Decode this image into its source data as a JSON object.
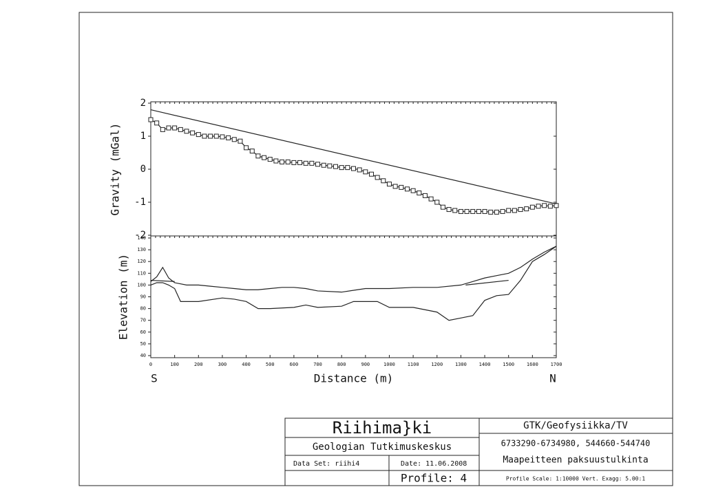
{
  "chart_data": [
    {
      "type": "line",
      "ylabel": "Gravity (mGal)",
      "xlim": [
        0,
        1700
      ],
      "ylim": [
        -2,
        2
      ],
      "yticks": [
        -2,
        -1,
        0,
        1,
        2
      ],
      "series": [
        {
          "marker": "square",
          "color": "#222222",
          "x": [
            0,
            25,
            50,
            75,
            100,
            125,
            150,
            175,
            200,
            225,
            250,
            275,
            300,
            325,
            350,
            375,
            400,
            425,
            450,
            475,
            500,
            525,
            550,
            575,
            600,
            625,
            650,
            675,
            700,
            725,
            750,
            775,
            800,
            825,
            850,
            875,
            900,
            925,
            950,
            975,
            1000,
            1025,
            1050,
            1075,
            1100,
            1125,
            1150,
            1175,
            1200,
            1225,
            1250,
            1275,
            1300,
            1325,
            1350,
            1375,
            1400,
            1425,
            1450,
            1475,
            1500,
            1525,
            1550,
            1575,
            1600,
            1625,
            1650,
            1675,
            1700
          ],
          "values": [
            1.5,
            1.4,
            1.2,
            1.25,
            1.25,
            1.2,
            1.15,
            1.1,
            1.05,
            1.0,
            1.0,
            1.0,
            0.98,
            0.95,
            0.9,
            0.85,
            0.65,
            0.55,
            0.4,
            0.35,
            0.3,
            0.25,
            0.22,
            0.22,
            0.2,
            0.2,
            0.18,
            0.18,
            0.15,
            0.12,
            0.1,
            0.08,
            0.05,
            0.05,
            0.02,
            -0.02,
            -0.08,
            -0.15,
            -0.25,
            -0.35,
            -0.45,
            -0.52,
            -0.55,
            -0.6,
            -0.65,
            -0.72,
            -0.8,
            -0.9,
            -1.0,
            -1.15,
            -1.22,
            -1.25,
            -1.28,
            -1.28,
            -1.28,
            -1.28,
            -1.28,
            -1.3,
            -1.3,
            -1.28,
            -1.25,
            -1.25,
            -1.22,
            -1.2,
            -1.15,
            -1.12,
            -1.1,
            -1.12,
            -1.1
          ]
        },
        {
          "color": "#222222",
          "x": [
            0,
            1700
          ],
          "values": [
            1.8,
            -1.05
          ]
        }
      ]
    },
    {
      "type": "line",
      "ylabel": "Elevation (m)",
      "xlabel": "Distance (m)",
      "annotations": [
        "S",
        "N"
      ],
      "xlim": [
        0,
        1700
      ],
      "xticks": [
        0,
        100,
        200,
        300,
        400,
        500,
        600,
        700,
        800,
        900,
        1000,
        1100,
        1200,
        1300,
        1400,
        1500,
        1600,
        1700
      ],
      "ylim": [
        40,
        140
      ],
      "yticks": [
        40,
        50,
        60,
        70,
        80,
        90,
        100,
        110,
        120,
        130,
        140
      ],
      "series": [
        {
          "color": "#222222",
          "x": [
            0,
            25,
            50,
            75,
            100,
            150,
            200,
            250,
            300,
            350,
            400,
            450,
            500,
            550,
            600,
            650,
            700,
            800,
            900,
            1000,
            1100,
            1200,
            1300,
            1350,
            1400,
            1450,
            1500,
            1550,
            1600,
            1650,
            1700
          ],
          "values": [
            103,
            107,
            115,
            106,
            102,
            100,
            100,
            99,
            98,
            97,
            96,
            96,
            97,
            98,
            98,
            97,
            95,
            94,
            97,
            97,
            98,
            98,
            100,
            103,
            106,
            108,
            110,
            115,
            122,
            128,
            133
          ]
        },
        {
          "color": "#222222",
          "x": [
            0,
            25,
            50,
            75,
            100,
            125,
            200,
            300,
            350,
            400,
            450,
            500,
            600,
            650,
            700,
            800,
            850,
            950,
            1000,
            1100,
            1200,
            1250,
            1300,
            1350,
            1400,
            1450,
            1500,
            1550,
            1600,
            1650,
            1700
          ],
          "values": [
            100,
            102,
            102,
            100,
            97,
            86,
            86,
            89,
            88,
            86,
            80,
            80,
            81,
            83,
            81,
            82,
            86,
            86,
            81,
            81,
            77,
            70,
            72,
            74,
            87,
            91,
            92,
            104,
            120,
            126,
            133
          ]
        },
        {
          "color": "#222222",
          "x": [
            0,
            100,
            1200,
            1320,
            1500
          ],
          "values": [
            104,
            103,
            null,
            100,
            104
          ]
        }
      ]
    }
  ],
  "title_block": {
    "title": "Riihima}ki",
    "org": "Geologian Tutkimuskeskus",
    "dataset": "Data Set: riihi4",
    "date": "Date: 11.06.2008",
    "profile": "Profile: 4",
    "dept": "GTK/Geofysiikka/TV",
    "coords": "6733290-6734980, 544660-544740",
    "subject": "Maapeitteen paksuustulkinta",
    "scale": "Profile Scale: 1:10000 Vert. Exagg: 5.00:1"
  }
}
